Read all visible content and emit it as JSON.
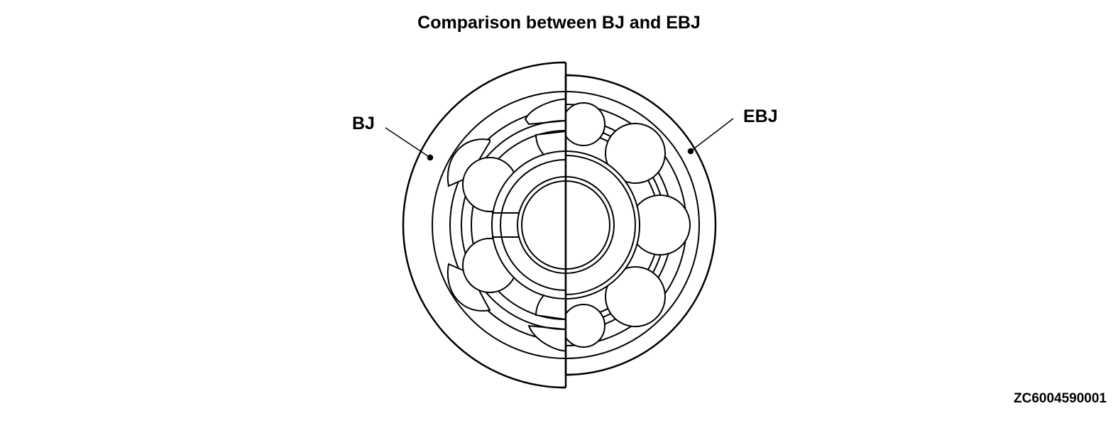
{
  "title": "Comparison between BJ and EBJ",
  "labels": {
    "left": "BJ",
    "right": "EBJ"
  },
  "figure_id": "ZC6004590001",
  "line_color": "#000000",
  "background_color": "#ffffff"
}
